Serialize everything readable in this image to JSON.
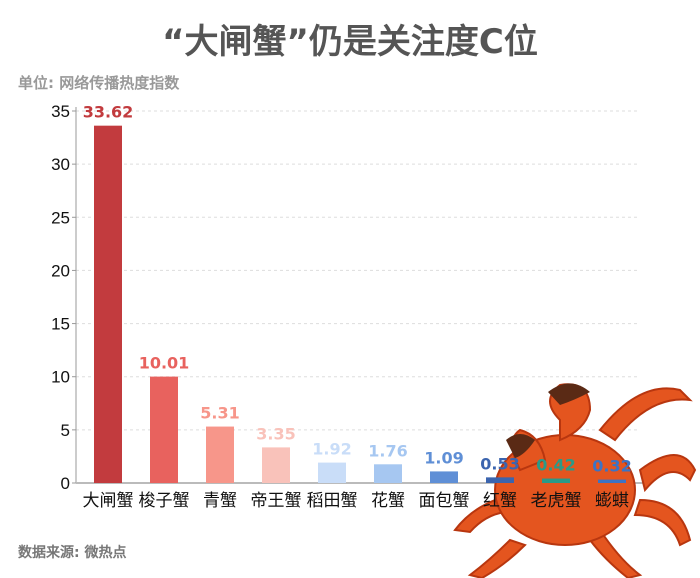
{
  "chart_data": {
    "type": "bar",
    "title": "“大闸蟹”仍是关注度C位",
    "ylabel": "单位: 网络传播热度指数",
    "source": "数据来源: 微热点",
    "categories": [
      "大闸蟹",
      "梭子蟹",
      "青蟹",
      "帝王蟹",
      "稻田蟹",
      "花蟹",
      "面包蟹",
      "红蟹",
      "老虎蟹",
      "蟛蜞"
    ],
    "values": [
      33.62,
      10.01,
      5.31,
      3.35,
      1.92,
      1.76,
      1.09,
      0.53,
      0.42,
      0.32
    ],
    "labels": [
      "33.62",
      "10.01",
      "5.31",
      "3.35",
      "1.92",
      "1.76",
      "1.09",
      "0.53",
      "0.42",
      "0.32"
    ],
    "colors": [
      "#c23b3e",
      "#e8625e",
      "#f7968a",
      "#f9c2ba",
      "#c9ddf8",
      "#a6c7f1",
      "#5f8fd6",
      "#3b64ae",
      "#2a9a88",
      "#3c73c4"
    ],
    "yticks": [
      "0",
      "5",
      "10",
      "15",
      "20",
      "25",
      "30",
      "35"
    ],
    "ylim": [
      0,
      35
    ],
    "grid": true,
    "decoration": "crab-image"
  }
}
